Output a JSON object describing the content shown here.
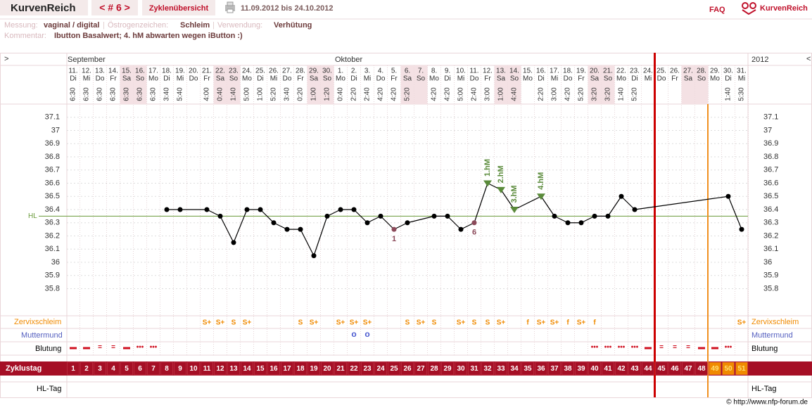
{
  "header": {
    "brand": "KurvenReich",
    "cycle_nav": "< # 6 >",
    "overview": "Zyklenübersicht",
    "date_range": "11.09.2012 bis 24.10.2012",
    "faq": "FAQ",
    "logo": "KurvenReich"
  },
  "info": {
    "measurement_label": "Messung:",
    "measurement": "vaginal / digital",
    "estrogen_label": "Östrogenzeichen:",
    "estrogen": "Schleim",
    "usage_label": "Verwendung:",
    "usage": "Verhütung",
    "comment_label": "Kommentar:",
    "comment": "Ibutton Basalwert; 4. hM abwarten wegen iButton :)"
  },
  "chart_data": {
    "type": "line",
    "nav_prev": ">",
    "nav_next": "<",
    "year": "2012",
    "months": [
      "September",
      "Oktober"
    ],
    "dates": [
      "11.",
      "12.",
      "13.",
      "14.",
      "15.",
      "16.",
      "17.",
      "18.",
      "19.",
      "20.",
      "21.",
      "22.",
      "23.",
      "24.",
      "25.",
      "26.",
      "27.",
      "28.",
      "29.",
      "30.",
      "1.",
      "2.",
      "3.",
      "4.",
      "5.",
      "6.",
      "7.",
      "8.",
      "9.",
      "10.",
      "11.",
      "12.",
      "13.",
      "14.",
      "15.",
      "16.",
      "17.",
      "18.",
      "19.",
      "20.",
      "21.",
      "22.",
      "23.",
      "24.",
      "25.",
      "26.",
      "27.",
      "28.",
      "29.",
      "30.",
      "31."
    ],
    "weekdays": [
      "Di",
      "Mi",
      "Do",
      "Fr",
      "Sa",
      "So",
      "Mo",
      "Di",
      "Mi",
      "Do",
      "Fr",
      "Sa",
      "So",
      "Mo",
      "Di",
      "Mi",
      "Do",
      "Fr",
      "Sa",
      "So",
      "Mo",
      "Di",
      "Mi",
      "Do",
      "Fr",
      "Sa",
      "So",
      "Mo",
      "Di",
      "Mi",
      "Do",
      "Fr",
      "Sa",
      "So",
      "Mo",
      "Di",
      "Mi",
      "Do",
      "Fr",
      "Sa",
      "So",
      "Mo",
      "Di",
      "Mi",
      "Do",
      "Fr",
      "Sa",
      "So",
      "Mo",
      "Di",
      "Mi"
    ],
    "times": [
      "6:30",
      "6:30",
      "6:30",
      "6:30",
      "6:30",
      "6:30",
      "6:30",
      "3:40",
      "5:40",
      null,
      "4:00",
      "0:40",
      "1:40",
      "5:00",
      "1:00",
      "5:20",
      "3:40",
      "0:20",
      "1:00",
      "1:20",
      "0:40",
      "2:20",
      "2:40",
      "4:20",
      "4:20",
      "5:20",
      null,
      "4:20",
      "4:20",
      "5:00",
      "2:40",
      "3:00",
      "1:00",
      "4:40",
      null,
      "2:20",
      "3:00",
      "4:20",
      "5:20",
      "3:20",
      "3:20",
      "1:40",
      "5:20",
      null,
      null,
      null,
      null,
      null,
      null,
      "1:40",
      "5:30"
    ],
    "values": [
      null,
      null,
      null,
      null,
      null,
      null,
      null,
      36.4,
      36.4,
      null,
      36.4,
      36.35,
      36.15,
      36.4,
      36.4,
      36.3,
      36.25,
      36.25,
      36.05,
      36.35,
      36.4,
      36.4,
      36.3,
      36.35,
      36.25,
      36.3,
      null,
      36.35,
      36.35,
      36.25,
      36.3,
      36.6,
      36.55,
      36.4,
      null,
      36.5,
      36.35,
      36.3,
      36.3,
      36.35,
      36.35,
      36.5,
      36.4,
      null,
      null,
      null,
      null,
      null,
      null,
      36.5,
      36.25
    ],
    "color": "#000000",
    "notes": [
      null,
      null,
      null,
      null,
      null,
      null,
      null,
      null,
      null,
      null,
      null,
      null,
      null,
      null,
      null,
      null,
      null,
      null,
      null,
      null,
      null,
      null,
      null,
      null,
      "1",
      null,
      null,
      null,
      null,
      null,
      "6",
      null,
      null,
      null,
      null,
      null,
      null,
      null,
      null,
      null,
      null,
      null,
      null,
      null,
      null,
      null,
      null,
      null,
      null,
      null,
      null
    ],
    "hm_labels": [
      null,
      null,
      null,
      null,
      null,
      null,
      null,
      null,
      null,
      null,
      null,
      null,
      null,
      null,
      null,
      null,
      null,
      null,
      null,
      null,
      null,
      null,
      null,
      null,
      null,
      null,
      null,
      null,
      null,
      null,
      null,
      "1.hM",
      "2.hM",
      "3.hM",
      null,
      "4.hM",
      null,
      null,
      null,
      null,
      null,
      null,
      null,
      null,
      null,
      null,
      null,
      null,
      null,
      null,
      null
    ],
    "ylim": [
      35.6,
      37.2
    ],
    "yticks": [
      35.8,
      35.9,
      36,
      36.1,
      36.2,
      36.3,
      36.4,
      36.5,
      36.6,
      36.7,
      36.8,
      36.9,
      37,
      37.1
    ],
    "grid": true,
    "hl": 36.35,
    "hl_label": "HL",
    "mucus_label": "Zervixschleim",
    "mucus": [
      null,
      null,
      null,
      null,
      null,
      null,
      null,
      null,
      null,
      null,
      "S+",
      "S+",
      "S",
      "S+",
      null,
      null,
      null,
      "S",
      "S+",
      null,
      "S+",
      "S+",
      "S+",
      null,
      null,
      "S",
      "S+",
      "S",
      null,
      "S+",
      "S",
      "S",
      "S+",
      null,
      "f",
      "S+",
      "S+",
      "f",
      "S+",
      "f",
      null,
      null,
      null,
      null,
      null,
      null,
      null,
      null,
      null,
      null,
      "S+"
    ],
    "cervix_label": "Muttermund",
    "cervix": [
      null,
      null,
      null,
      null,
      null,
      null,
      null,
      null,
      null,
      null,
      null,
      null,
      null,
      null,
      null,
      null,
      null,
      null,
      null,
      null,
      null,
      "o",
      "o",
      null,
      null,
      null,
      null,
      null,
      null,
      null,
      null,
      null,
      null,
      null,
      null,
      null,
      null,
      null,
      null,
      null,
      null,
      null,
      null,
      null,
      null,
      null,
      null,
      null,
      null,
      null,
      null
    ],
    "bleeding_label": "Blutung",
    "bleeding": [
      "▬",
      "▬",
      "=",
      "=",
      "▬",
      "•••",
      "•••",
      null,
      null,
      null,
      null,
      null,
      null,
      null,
      null,
      null,
      null,
      null,
      null,
      null,
      null,
      null,
      null,
      null,
      null,
      null,
      null,
      null,
      null,
      null,
      null,
      null,
      null,
      null,
      null,
      null,
      null,
      null,
      null,
      "•••",
      "•••",
      "•••",
      "•••",
      "▬",
      "=",
      "=",
      "=",
      "▬",
      "▬",
      "•••",
      null
    ],
    "cycle_day_label": "Zyklustag",
    "cycle_days": [
      1,
      2,
      3,
      4,
      5,
      6,
      7,
      8,
      9,
      10,
      11,
      12,
      13,
      14,
      15,
      16,
      17,
      18,
      19,
      20,
      21,
      22,
      23,
      24,
      25,
      26,
      27,
      28,
      29,
      30,
      31,
      32,
      33,
      34,
      35,
      36,
      37,
      38,
      39,
      40,
      41,
      42,
      43,
      44,
      45,
      46,
      47,
      48,
      49,
      50,
      51
    ],
    "hl_day_label": "HL-Tag"
  },
  "footer": "© http://www.nfp-forum.de"
}
